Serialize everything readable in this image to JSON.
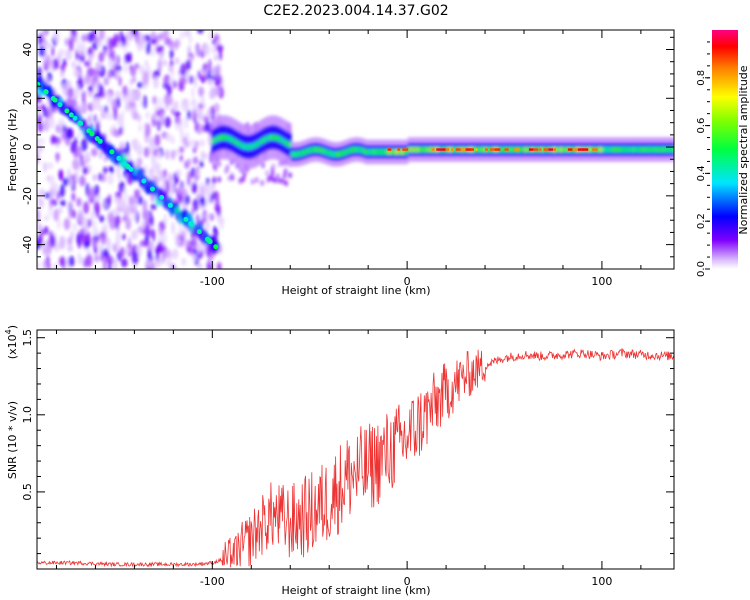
{
  "figure": {
    "title": "C2E2.2023.004.14.37.G02"
  },
  "colors": {
    "snr_line": "#ee3333",
    "axis": "#000000",
    "background": "#ffffff"
  },
  "chart_data": [
    {
      "type": "heatmap",
      "title": "C2E2.2023.004.14.37.G02",
      "xlabel": "Height of straight line (km)",
      "ylabel": "Frequency (Hz)",
      "xlim": [
        -190,
        137
      ],
      "ylim": [
        -50,
        48
      ],
      "x_ticks": [
        -100,
        0,
        100
      ],
      "x_tick_labels": [
        "-100",
        "0",
        "100"
      ],
      "y_ticks": [
        -40,
        -20,
        0,
        20,
        40
      ],
      "y_tick_labels": [
        "-40",
        "-20",
        "0",
        "20",
        "40"
      ],
      "colorbar": {
        "label": "Normalized spectral amplitude",
        "range": [
          0,
          1
        ],
        "ticks": [
          0.0,
          0.2,
          0.4,
          0.6,
          0.8
        ],
        "tick_labels": [
          "0.0",
          "0.2",
          "0.4",
          "0.6",
          "0.8"
        ]
      },
      "features": [
        {
          "name": "diagonal descending trace",
          "from": [
            -190,
            26
          ],
          "to": [
            -98,
            -41
          ],
          "amplitude": 0.35
        },
        {
          "name": "near-zero frequency band",
          "x_range": [
            -100,
            137
          ],
          "frequency": 0,
          "amplitude": 0.6
        },
        {
          "name": "peak amplitude band",
          "x_range": [
            -10,
            100
          ],
          "frequency": -1,
          "amplitude": 0.95
        }
      ]
    },
    {
      "type": "line",
      "xlabel": "Height of straight line (km)",
      "ylabel": "SNR (10 * v/v)",
      "y_scale_label": "(x10",
      "y_scale_exponent": "4",
      "y_scale_close": ")",
      "xlim": [
        -190,
        137
      ],
      "ylim": [
        0,
        1.55
      ],
      "x_ticks": [
        -100,
        0,
        100
      ],
      "x_tick_labels": [
        "-100",
        "0",
        "100"
      ],
      "y_ticks": [
        0.5,
        1.0,
        1.5
      ],
      "y_tick_labels": [
        "0.5",
        "1.0",
        "1.5"
      ],
      "series": [
        {
          "name": "SNR",
          "x": [
            -190,
            -170,
            -150,
            -130,
            -110,
            -100,
            -90,
            -80,
            -70,
            -60,
            -50,
            -40,
            -30,
            -20,
            -10,
            0,
            10,
            20,
            30,
            40,
            50,
            60,
            70,
            80,
            90,
            100,
            110,
            120,
            137
          ],
          "y": [
            0.04,
            0.04,
            0.03,
            0.03,
            0.03,
            0.04,
            0.08,
            0.2,
            0.35,
            0.3,
            0.35,
            0.45,
            0.6,
            0.65,
            0.75,
            0.85,
            1.0,
            1.15,
            1.25,
            1.32,
            1.37,
            1.39,
            1.38,
            1.39,
            1.4,
            1.38,
            1.4,
            1.39,
            1.38
          ]
        }
      ]
    }
  ]
}
